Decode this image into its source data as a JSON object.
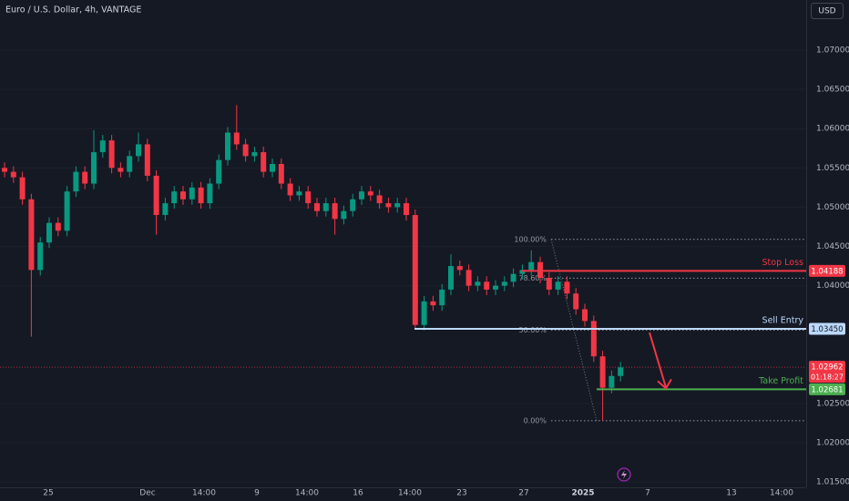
{
  "chart_data": {
    "type": "candlestick",
    "title": "Euro / U.S. Dollar, 4h, VANTAGE",
    "currency_button": "USD",
    "up_color": "#089981",
    "down_color": "#f23645",
    "x_labels": [
      "25",
      "Dec",
      "14:00",
      "9",
      "14:00",
      "16",
      "14:00",
      "23",
      "27",
      "2025",
      "7",
      "13",
      "14:00"
    ],
    "ylim": [
      1.01432,
      1.07638
    ],
    "yticks": [
      {
        "value": 1.07,
        "label": "1.07000"
      },
      {
        "value": 1.065,
        "label": "1.06500"
      },
      {
        "value": 1.06,
        "label": "1.06000"
      },
      {
        "value": 1.055,
        "label": "1.05500"
      },
      {
        "value": 1.05,
        "label": "1.05000"
      },
      {
        "value": 1.045,
        "label": "1.04500"
      },
      {
        "value": 1.04,
        "label": "1.04000"
      },
      {
        "value": 1.025,
        "label": "1.02500"
      },
      {
        "value": 1.02,
        "label": "1.02000"
      },
      {
        "value": 1.015,
        "label": "1.01500"
      }
    ],
    "open": [
      1.055,
      1.0545,
      1.0538,
      1.051,
      1.042,
      1.0455,
      1.048,
      1.047,
      1.052,
      1.0545,
      1.053,
      1.057,
      1.0585,
      1.055,
      1.0545,
      1.0565,
      1.058,
      1.054,
      1.049,
      1.0505,
      1.052,
      1.051,
      1.0525,
      1.0505,
      1.053,
      1.056,
      1.0595,
      1.058,
      1.0565,
      1.057,
      1.0545,
      1.0555,
      1.053,
      1.0515,
      1.052,
      1.0505,
      1.0495,
      1.0505,
      1.0485,
      1.0495,
      1.051,
      1.052,
      1.0515,
      1.0505,
      1.05,
      1.0505,
      1.049,
      1.035,
      1.038,
      1.0375,
      1.0395,
      1.0425,
      1.042,
      1.04,
      1.0405,
      1.0395,
      1.04,
      1.0405,
      1.0415,
      1.042,
      1.043,
      1.041,
      1.0395,
      1.0405,
      1.039,
      1.037,
      1.0355,
      1.031,
      1.027,
      1.0285
    ],
    "high": [
      1.0557,
      1.0552,
      1.0545,
      1.0517,
      1.0462,
      1.0487,
      1.0487,
      1.0527,
      1.0552,
      1.0552,
      1.0598,
      1.0592,
      1.0592,
      1.0557,
      1.0572,
      1.0595,
      1.0587,
      1.0547,
      1.0512,
      1.0527,
      1.0527,
      1.0532,
      1.0532,
      1.0537,
      1.0567,
      1.0602,
      1.063,
      1.0587,
      1.0577,
      1.0577,
      1.0562,
      1.0562,
      1.0537,
      1.0527,
      1.0527,
      1.0512,
      1.0512,
      1.0512,
      1.0502,
      1.0517,
      1.0527,
      1.0527,
      1.0522,
      1.0512,
      1.0512,
      1.0512,
      1.0497,
      1.0387,
      1.0387,
      1.0402,
      1.044,
      1.0432,
      1.0427,
      1.0412,
      1.0412,
      1.0407,
      1.0412,
      1.0422,
      1.0427,
      1.0445,
      1.0437,
      1.0417,
      1.0412,
      1.0412,
      1.0397,
      1.0377,
      1.0362,
      1.0317,
      1.0292,
      1.0303
    ],
    "low": [
      1.0538,
      1.0531,
      1.0503,
      1.0335,
      1.0413,
      1.0448,
      1.0463,
      1.0463,
      1.0513,
      1.0523,
      1.0523,
      1.0563,
      1.0543,
      1.0538,
      1.0538,
      1.0558,
      1.0533,
      1.0465,
      1.0483,
      1.0498,
      1.0503,
      1.0503,
      1.0498,
      1.0498,
      1.0523,
      1.0553,
      1.0573,
      1.0558,
      1.0558,
      1.0538,
      1.0538,
      1.0523,
      1.0508,
      1.0508,
      1.0498,
      1.0488,
      1.0488,
      1.0465,
      1.0478,
      1.0488,
      1.0503,
      1.0508,
      1.0498,
      1.0493,
      1.0493,
      1.0483,
      1.0345,
      1.0343,
      1.0368,
      1.0368,
      1.0388,
      1.0413,
      1.0393,
      1.0393,
      1.0388,
      1.0388,
      1.0393,
      1.0398,
      1.0408,
      1.0413,
      1.0403,
      1.0388,
      1.0388,
      1.0383,
      1.0363,
      1.0348,
      1.0303,
      1.0228,
      1.0263,
      1.0278
    ],
    "close": [
      1.0545,
      1.0538,
      1.051,
      1.042,
      1.0455,
      1.048,
      1.047,
      1.052,
      1.0545,
      1.053,
      1.057,
      1.0585,
      1.055,
      1.0545,
      1.0565,
      1.058,
      1.054,
      1.049,
      1.0505,
      1.052,
      1.051,
      1.0525,
      1.0505,
      1.053,
      1.056,
      1.0595,
      1.058,
      1.0565,
      1.057,
      1.0545,
      1.0555,
      1.053,
      1.0515,
      1.052,
      1.0505,
      1.0495,
      1.0505,
      1.0485,
      1.0495,
      1.051,
      1.052,
      1.0515,
      1.0505,
      1.05,
      1.0505,
      1.049,
      1.035,
      1.038,
      1.0375,
      1.0395,
      1.0425,
      1.042,
      1.04,
      1.0405,
      1.0395,
      1.04,
      1.0405,
      1.0415,
      1.042,
      1.043,
      1.041,
      1.0395,
      1.0405,
      1.039,
      1.037,
      1.0355,
      1.031,
      1.027,
      1.0285,
      1.0296
    ],
    "levels": [
      {
        "name": "Stop Loss",
        "value": 1.04188,
        "label": "1.04188",
        "color": "#f23645"
      },
      {
        "name": "Sell Entry",
        "value": 1.0345,
        "label": "1.03450",
        "color": "#bbd9fb"
      },
      {
        "name": "Take Profit",
        "value": 1.02681,
        "label": "1.02681",
        "color": "#4caf50"
      }
    ],
    "fib": [
      {
        "label": "100.00%",
        "value": 1.0459
      },
      {
        "label": "78.60%",
        "value": 1.04096
      },
      {
        "label": "50.00%",
        "value": 1.03435
      },
      {
        "label": "0.00%",
        "value": 1.0228
      }
    ],
    "last_price": {
      "value": 1.02962,
      "label": "1.02962",
      "countdown": "01:18:27"
    }
  }
}
